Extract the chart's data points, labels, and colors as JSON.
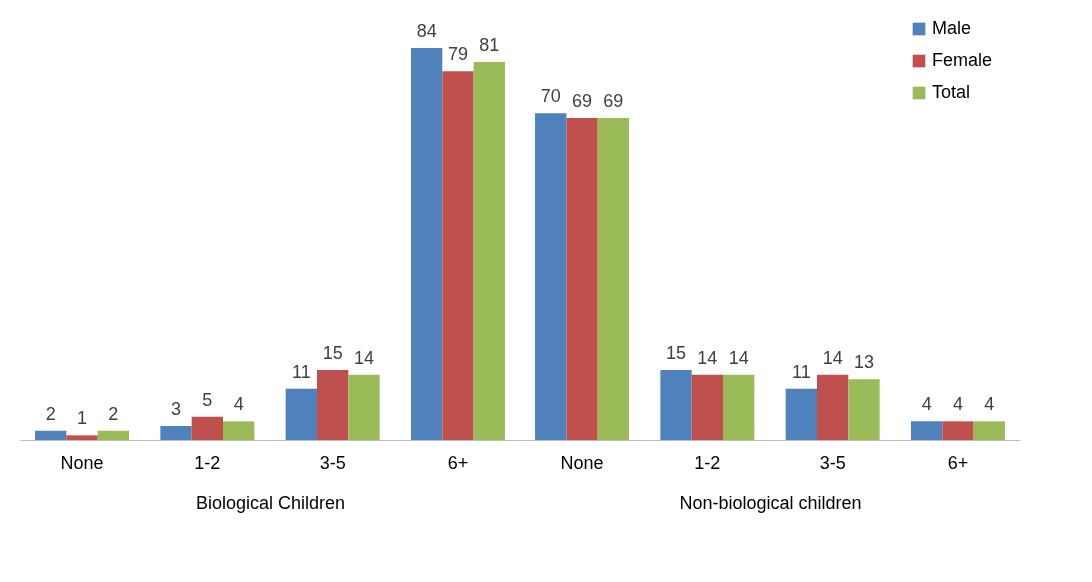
{
  "chart_data": {
    "type": "bar",
    "categories": [
      "None",
      "1-2",
      "3-5",
      "6+",
      "None",
      "1-2",
      "3-5",
      "6+"
    ],
    "series": [
      {
        "name": "Male",
        "color": "#4f81bd",
        "values": [
          2,
          3,
          11,
          84,
          70,
          15,
          11,
          4
        ]
      },
      {
        "name": "Female",
        "color": "#c0504d",
        "values": [
          1,
          5,
          15,
          79,
          69,
          14,
          14,
          4
        ]
      },
      {
        "name": "Total",
        "color": "#9bbb59",
        "values": [
          2,
          4,
          14,
          81,
          69,
          14,
          13,
          4
        ]
      }
    ],
    "annotations": [
      "Biological Children",
      "Non-biological children"
    ],
    "data_labels": true,
    "legend": "top right",
    "grid": false
  }
}
